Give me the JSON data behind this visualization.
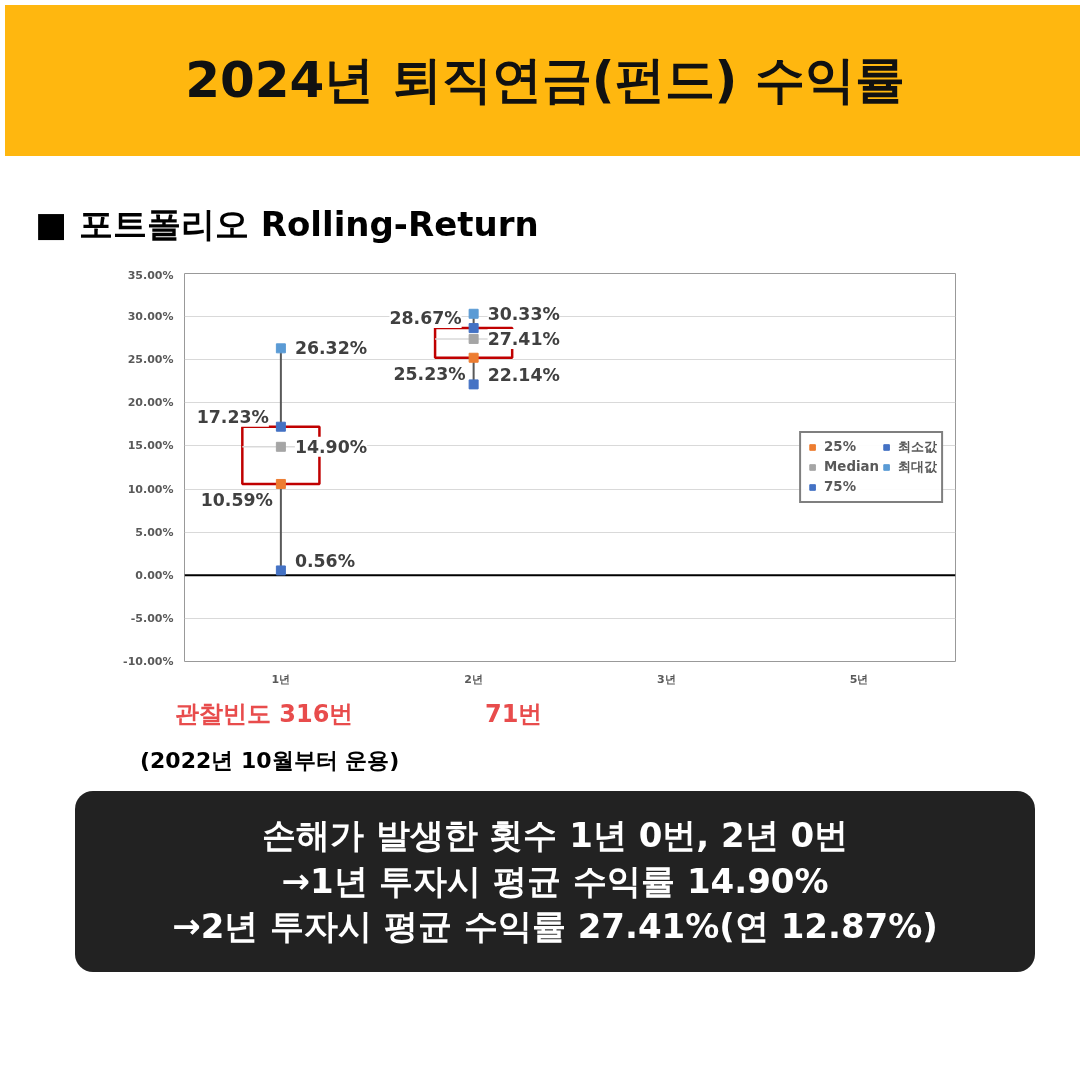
{
  "chart_data": {
    "type": "box",
    "title": "2024년 퇴직연금(펀드) 수익률",
    "subtitle": "■ 포트폴리오 Rolling-Return",
    "categories": [
      "1년",
      "2년",
      "3년",
      "5년"
    ],
    "boxes": [
      {
        "low": 0.56,
        "q1": 10.59,
        "median": 14.9,
        "q3": 17.23,
        "high": 26.32
      },
      {
        "low": 22.14,
        "q1": 25.23,
        "median": 27.41,
        "q3": 28.67,
        "high": 30.33
      },
      null,
      null
    ],
    "series": [
      {
        "name": "25%",
        "type": "scatter",
        "color": "#ed7d31",
        "values": [
          10.59,
          25.23,
          null,
          null
        ],
        "value_labels": [
          "10.59%",
          "25.23%",
          null,
          null
        ]
      },
      {
        "name": "Median",
        "type": "scatter",
        "color": "#a5a5a5",
        "values": [
          14.9,
          27.41,
          null,
          null
        ],
        "value_labels": [
          "14.90%",
          "27.41%",
          null,
          null
        ]
      },
      {
        "name": "75%",
        "type": "scatter",
        "color": "#4472c4",
        "values": [
          17.23,
          28.67,
          null,
          null
        ],
        "value_labels": [
          "17.23%",
          "28.67%",
          null,
          null
        ]
      },
      {
        "name": "최소값",
        "type": "scatter",
        "color": "#4472c4",
        "values": [
          0.56,
          22.14,
          null,
          null
        ],
        "value_labels": [
          "0.56%",
          "22.14%",
          null,
          null
        ]
      },
      {
        "name": "최대값",
        "type": "scatter",
        "color": "#5b9bd5",
        "values": [
          26.32,
          30.33,
          null,
          null
        ],
        "value_labels": [
          "26.32%",
          "30.33%",
          null,
          null
        ]
      }
    ],
    "ylim": [
      -10,
      35
    ],
    "yticks": [
      {
        "value": -10,
        "label": "-10.00%"
      },
      {
        "value": -5,
        "label": "-5.00%"
      },
      {
        "value": 0,
        "label": "0.00%"
      },
      {
        "value": 5,
        "label": "5.00%"
      },
      {
        "value": 10,
        "label": "10.00%"
      },
      {
        "value": 15,
        "label": "15.00%"
      },
      {
        "value": 20,
        "label": "20.00%"
      },
      {
        "value": 25,
        "label": "25.00%"
      },
      {
        "value": 30,
        "label": "30.00%"
      },
      {
        "value": 35,
        "label": "35.00%"
      }
    ],
    "grid": "y",
    "legend": "right",
    "annotations": [
      "관찰빈도 316번",
      "71번",
      "(2022년 10월부터 운용)",
      "손해가 발생한 횟수 1년 0번, 2년 0번",
      "→1년 투자시 평균 수익률 14.90%",
      "→2년 투자시 평균 수익률 27.41%(연 12.87%)"
    ]
  }
}
